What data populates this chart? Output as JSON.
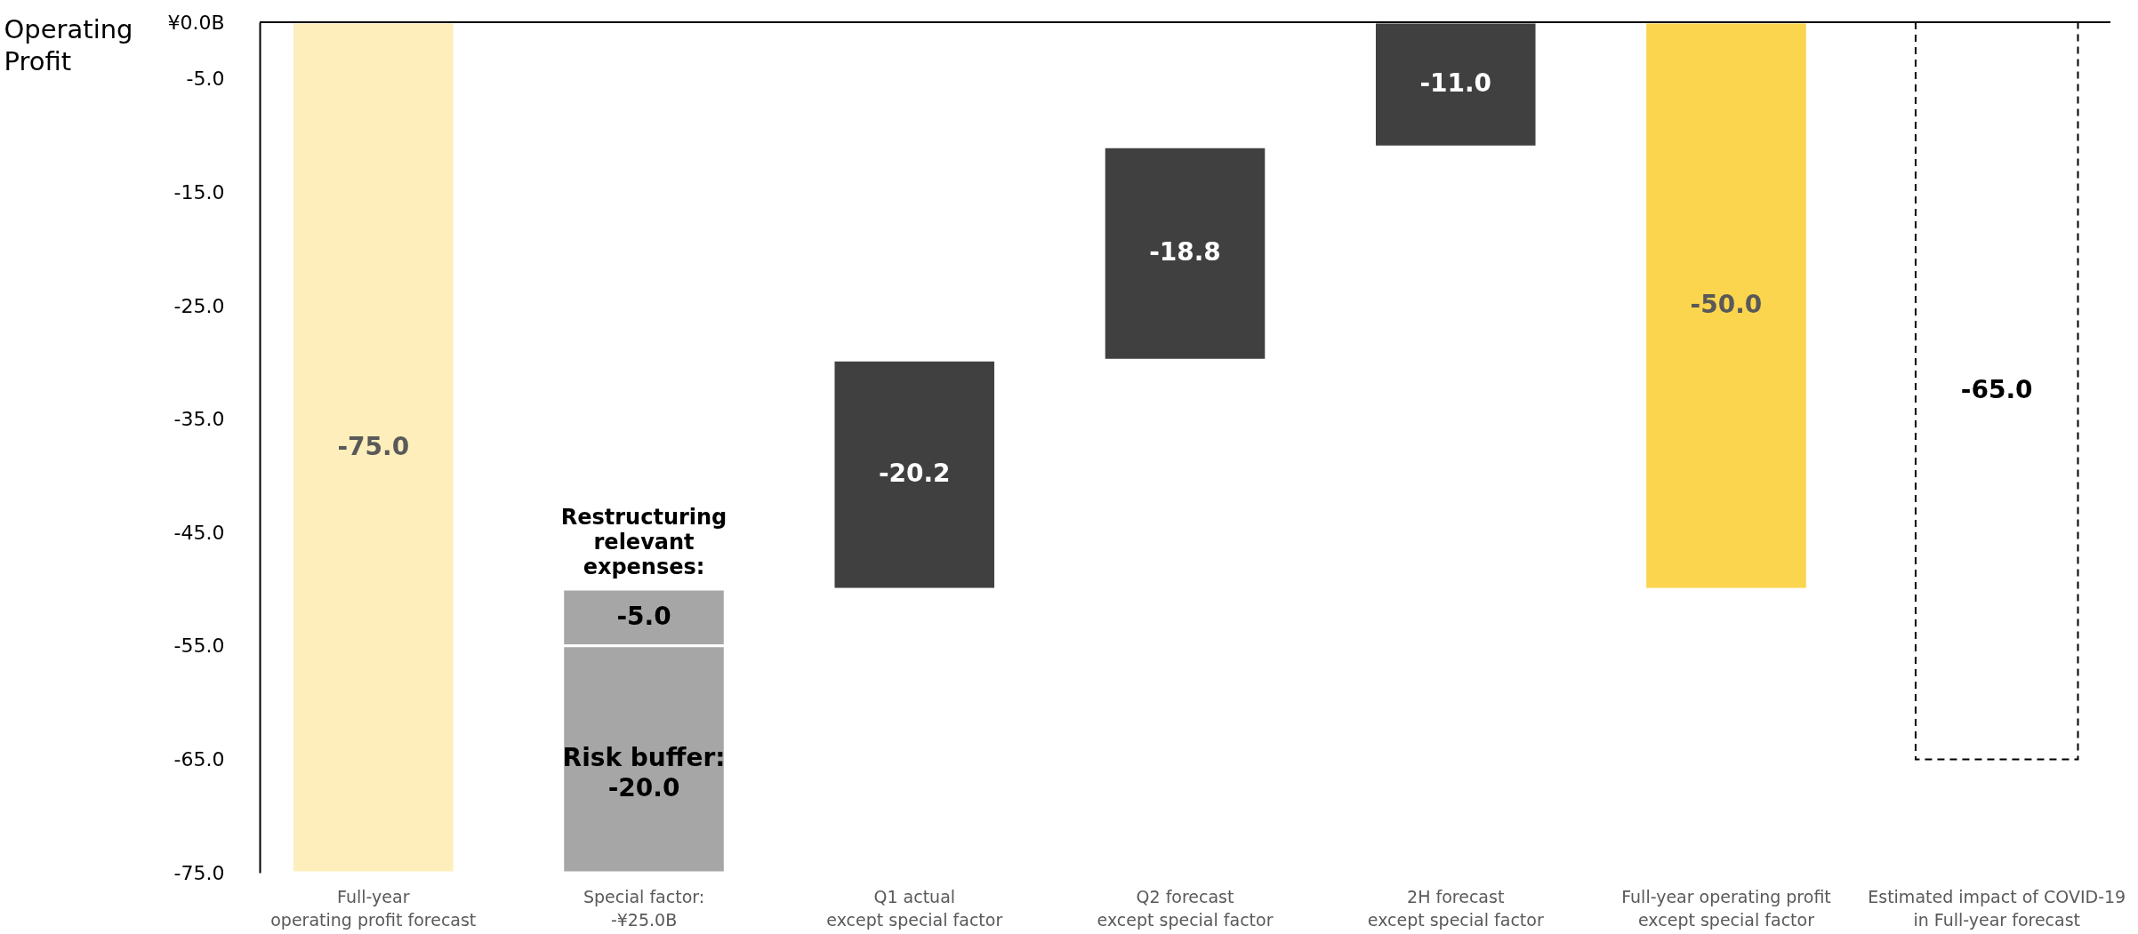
{
  "chart_data": {
    "type": "bar",
    "ylabel": "Operating Profit",
    "categories": [
      "Full-year\noperating profit forecast",
      "Special factor:\n-¥25.0B",
      "Q1 actual\nexcept special factor",
      "Q2 forecast\nexcept special factor",
      "2H forecast\nexcept special factor",
      "Full-year operating profit\nexcept special factor",
      "Estimated impact of COVID-19\nin Full-year forecast"
    ],
    "series": [
      {
        "values": [
          -75.0,
          -5.0,
          -20.2,
          -18.8,
          -11.0,
          -50.0,
          null
        ],
        "base": [
          0,
          -50.0,
          -29.8,
          -11.0,
          0,
          0,
          null
        ],
        "colors": [
          "#fdeebb",
          "#a6a6a6",
          "#404040",
          "#404040",
          "#404040",
          "#fbd54e",
          null
        ],
        "value_labels": [
          "-75.0",
          "-5.0",
          "-20.2",
          "-18.8",
          "-11.0",
          "-50.0",
          null
        ]
      },
      {
        "values": [
          null,
          -20.0,
          null,
          null,
          null,
          null,
          null
        ],
        "base": [
          null,
          -55.0,
          null,
          null,
          null,
          null,
          null
        ],
        "color": "#a6a6a6",
        "value_labels": [
          null,
          "Risk buffer:\n-20.0",
          null,
          null,
          null,
          null,
          null
        ]
      },
      {
        "values": [
          null,
          null,
          null,
          null,
          null,
          null,
          -65.0
        ],
        "base": [
          null,
          null,
          null,
          null,
          null,
          null,
          0
        ],
        "color": "#000000",
        "line_style": "dashed",
        "value_labels": [
          null,
          null,
          null,
          null,
          null,
          null,
          "-65.0"
        ]
      }
    ],
    "ylim": [
      -75,
      0
    ],
    "yticks": [
      {
        "value": 0,
        "label": "¥0.0B"
      },
      {
        "value": -5,
        "label": "-5.0"
      },
      {
        "value": -15,
        "label": "-15.0"
      },
      {
        "value": -25,
        "label": "-25.0"
      },
      {
        "value": -35,
        "label": "-35.0"
      },
      {
        "value": -45,
        "label": "-45.0"
      },
      {
        "value": -55,
        "label": "-55.0"
      },
      {
        "value": -65,
        "label": "-65.0"
      },
      {
        "value": -75,
        "label": "-75.0"
      }
    ],
    "ref_lines": [
      {
        "axis": "y",
        "value": 0,
        "color": "#000000"
      }
    ],
    "annotations": [
      {
        "text": "Restructuring\nrelevant\nexpenses:",
        "x": "Special factor:\n-¥25.0B",
        "y": -50.0
      }
    ],
    "grid": false
  }
}
